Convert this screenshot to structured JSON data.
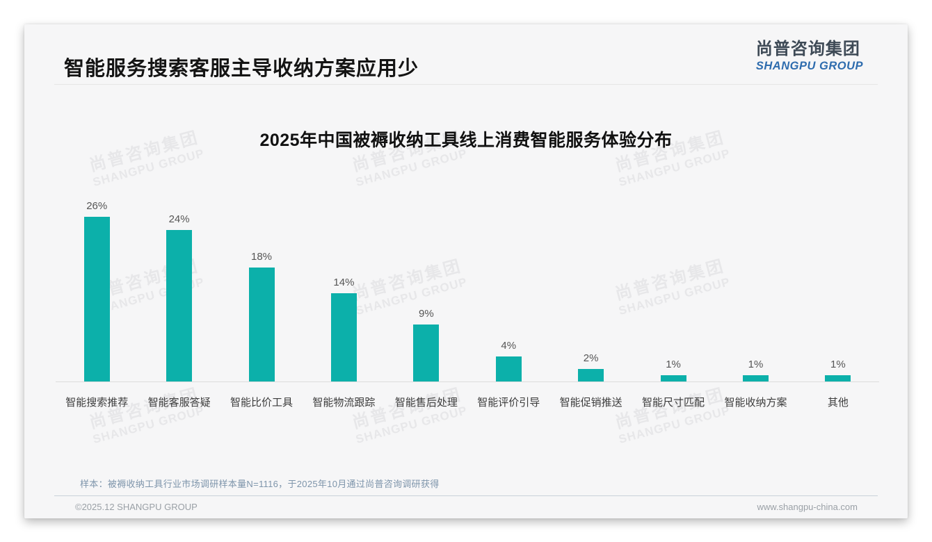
{
  "page": {
    "slide_title": "智能服务搜索客服主导收纳方案应用少",
    "logo": {
      "cn": "尚普咨询集团",
      "en": "SHANGPU GROUP"
    },
    "watermark": {
      "line1": "尚普咨询集团",
      "line2": "SHANGPU GROUP"
    },
    "footnote": "样本：被褥收纳工具行业市场调研样本量N=1116，于2025年10月通过尚普咨询调研获得",
    "footer": {
      "left": "©2025.12 SHANGPU GROUP",
      "right": "www.shangpu-china.com"
    }
  },
  "colors": {
    "bar_teal": "#0cb0aa",
    "logo_blue": "#2e6cae",
    "card_background": "#f6f6f7",
    "footnote_blue_gray": "#7e95ab"
  },
  "chart_data": {
    "type": "bar",
    "title": "2025年中国被褥收纳工具线上消费智能服务体验分布",
    "categories": [
      "智能搜索推荐",
      "智能客服答疑",
      "智能比价工具",
      "智能物流跟踪",
      "智能售后处理",
      "智能评价引导",
      "智能促销推送",
      "智能尺寸匹配",
      "智能收纳方案",
      "其他"
    ],
    "values": [
      26,
      24,
      18,
      14,
      9,
      4,
      2,
      1,
      1,
      1
    ],
    "unit": "%",
    "value_label_format": "{value}%",
    "bar_color": "#0cb0aa",
    "xlabel": "",
    "ylabel": "",
    "ylim": [
      0,
      28
    ],
    "grid": false,
    "legend": "none",
    "value_labels_position": "above-bars"
  }
}
